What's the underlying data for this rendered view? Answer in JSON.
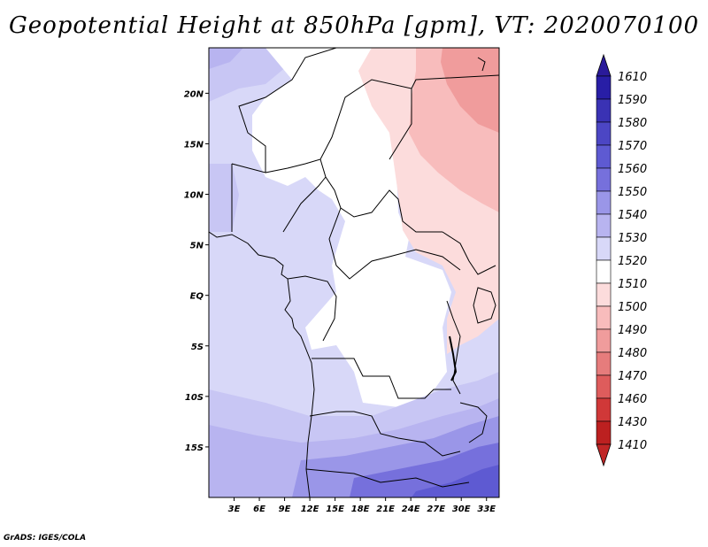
{
  "title": "Geopotential Height at 850hPa [gpm], VT: 2020070100",
  "credit": "GrADS: IGES/COLA",
  "map": {
    "lon_range": [
      0,
      34.5
    ],
    "lat_range": [
      -20,
      24.5
    ],
    "lon_ticks": [
      {
        "v": 3,
        "label": "3E"
      },
      {
        "v": 6,
        "label": "6E"
      },
      {
        "v": 9,
        "label": "9E"
      },
      {
        "v": 12,
        "label": "12E"
      },
      {
        "v": 15,
        "label": "15E"
      },
      {
        "v": 18,
        "label": "18E"
      },
      {
        "v": 21,
        "label": "21E"
      },
      {
        "v": 24,
        "label": "24E"
      },
      {
        "v": 27,
        "label": "27E"
      },
      {
        "v": 30,
        "label": "30E"
      },
      {
        "v": 33,
        "label": "33E"
      }
    ],
    "lat_ticks": [
      {
        "v": 20,
        "label": "20N"
      },
      {
        "v": 15,
        "label": "15N"
      },
      {
        "v": 10,
        "label": "10N"
      },
      {
        "v": 5,
        "label": "5N"
      },
      {
        "v": 0,
        "label": "EQ"
      },
      {
        "v": -5,
        "label": "5S"
      },
      {
        "v": -10,
        "label": "10S"
      },
      {
        "v": -15,
        "label": "15S"
      }
    ]
  },
  "colorbar": {
    "levels": [
      {
        "label": "1610",
        "color": "#1e1696"
      },
      {
        "label": "1590",
        "color": "#281ea6"
      },
      {
        "label": "1580",
        "color": "#3a32b4"
      },
      {
        "label": "1570",
        "color": "#4c46c4"
      },
      {
        "label": "1560",
        "color": "#5e5ad2"
      },
      {
        "label": "1550",
        "color": "#7670dc"
      },
      {
        "label": "1540",
        "color": "#9a96e8"
      },
      {
        "label": "1530",
        "color": "#b8b4f0"
      },
      {
        "label": "1520",
        "color": "#d8d8f8"
      },
      {
        "label": "1510",
        "color": "#ffffff"
      },
      {
        "label": "1500",
        "color": "#fcdcdc"
      },
      {
        "label": "1490",
        "color": "#f8bcbc"
      },
      {
        "label": "1480",
        "color": "#f09c9c"
      },
      {
        "label": "1470",
        "color": "#e67c7c"
      },
      {
        "label": "1460",
        "color": "#de5c5c"
      },
      {
        "label": "1430",
        "color": "#d03838"
      },
      {
        "label": "1410",
        "color": "#bc2020"
      }
    ],
    "top_end_color": "#2a1a9a",
    "bottom_end_color": "#c02626"
  }
}
